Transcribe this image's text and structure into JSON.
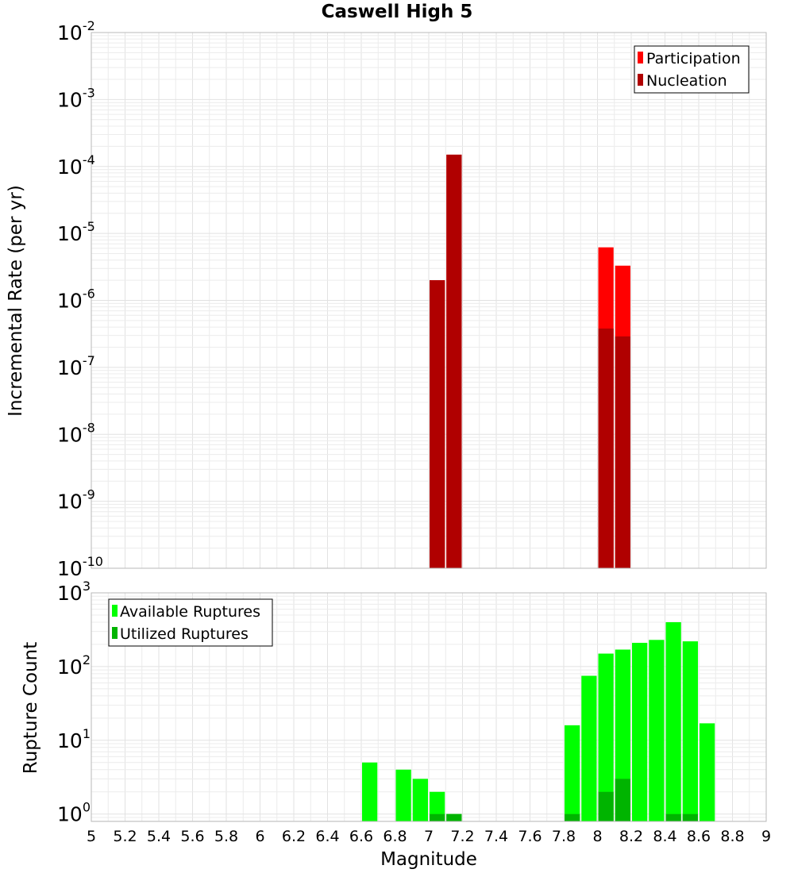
{
  "chart_data": {
    "type": "bar",
    "title": "Caswell High 5",
    "xlabel": "Magnitude",
    "xlim": [
      5,
      9
    ],
    "x_ticks": [
      "5",
      "5.2",
      "5.4",
      "5.6",
      "5.8",
      "6",
      "6.2",
      "6.4",
      "6.6",
      "6.8",
      "7",
      "7.2",
      "7.4",
      "7.6",
      "7.8",
      "8",
      "8.2",
      "8.4",
      "8.6",
      "8.8",
      "9"
    ],
    "bin_width": 0.1,
    "panels": [
      {
        "id": "rate",
        "ylabel": "Incremental Rate (per yr)",
        "yscale": "log",
        "ylim_exp": [
          -10,
          -2
        ],
        "y_ticks": [
          {
            "base": "10",
            "exp": "-10"
          },
          {
            "base": "10",
            "exp": "-9"
          },
          {
            "base": "10",
            "exp": "-8"
          },
          {
            "base": "10",
            "exp": "-7"
          },
          {
            "base": "10",
            "exp": "-6"
          },
          {
            "base": "10",
            "exp": "-5"
          },
          {
            "base": "10",
            "exp": "-4"
          },
          {
            "base": "10",
            "exp": "-3"
          },
          {
            "base": "10",
            "exp": "-2"
          }
        ],
        "legend_position": "top-right",
        "series": [
          {
            "name": "Participation",
            "color": "#ff0000",
            "x": [
              7.05,
              7.15,
              8.05,
              8.15
            ],
            "values": [
              2e-06,
              0.00015,
              6.2e-06,
              3.3e-06
            ]
          },
          {
            "name": "Nucleation",
            "color": "#b00000",
            "x": [
              7.05,
              7.15,
              8.05,
              8.15
            ],
            "values": [
              2e-06,
              0.00015,
              3.8e-07,
              2.9e-07
            ]
          }
        ]
      },
      {
        "id": "count",
        "ylabel": "Rupture Count",
        "yscale": "log",
        "ylim_exp": [
          -0.1,
          3
        ],
        "y_ticks": [
          {
            "base": "10",
            "exp": "0"
          },
          {
            "base": "10",
            "exp": "1"
          },
          {
            "base": "10",
            "exp": "2"
          },
          {
            "base": "10",
            "exp": "3"
          }
        ],
        "legend_position": "top-left",
        "series": [
          {
            "name": "Available Ruptures",
            "color": "#00ff00",
            "x": [
              6.65,
              6.85,
              6.95,
              7.05,
              7.15,
              7.85,
              7.95,
              8.05,
              8.15,
              8.25,
              8.35,
              8.45,
              8.55,
              8.65
            ],
            "values": [
              5,
              4,
              3,
              2,
              1,
              16,
              75,
              150,
              170,
              210,
              230,
              400,
              220,
              17
            ]
          },
          {
            "name": "Utilized Ruptures",
            "color": "#00b400",
            "x": [
              7.05,
              7.15,
              7.85,
              8.05,
              8.15,
              8.45,
              8.55
            ],
            "values": [
              1,
              1,
              1,
              2,
              3,
              1,
              1
            ]
          }
        ]
      }
    ]
  }
}
